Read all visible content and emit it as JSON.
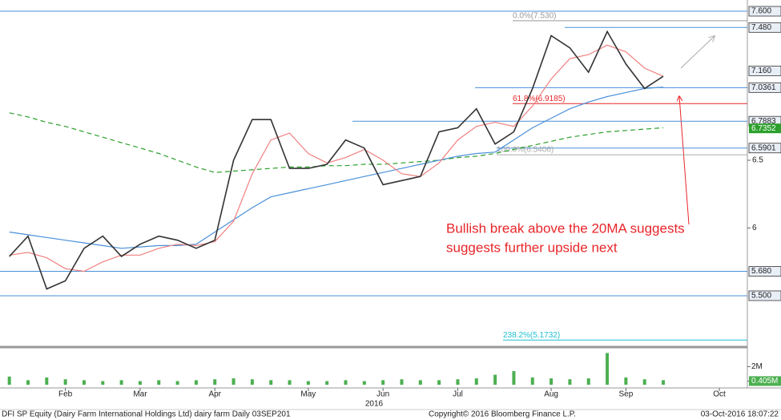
{
  "chart_data": {
    "type": "line",
    "categories": [
      null,
      null,
      null,
      "Feb",
      null,
      null,
      null,
      "Mar",
      null,
      null,
      null,
      "Apr",
      null,
      null,
      null,
      null,
      "May",
      null,
      null,
      null,
      "Jun",
      null,
      null,
      null,
      "Jul",
      null,
      null,
      null,
      null,
      "Aug",
      null,
      null,
      null,
      "Sep",
      null,
      null,
      null,
      null,
      "Oct",
      null
    ],
    "year_label": "2016",
    "ylim": [
      5.127,
      7.683
    ],
    "yticks": [
      6.5,
      6.0
    ],
    "series": [
      {
        "color": "#333333",
        "values": [
          5.79,
          5.94,
          5.55,
          5.61,
          5.85,
          5.94,
          5.79,
          5.88,
          5.94,
          5.91,
          5.85,
          5.91,
          6.5,
          6.8,
          6.8,
          6.44,
          6.44,
          6.47,
          6.65,
          6.59,
          6.32,
          6.35,
          6.38,
          6.71,
          6.74,
          6.88,
          6.62,
          6.71,
          7.03,
          7.42,
          7.33,
          7.15,
          7.45,
          7.21,
          7.03,
          7.12,
          null,
          null,
          null,
          null
        ]
      },
      {
        "color": "#f08080",
        "values": [
          5.8,
          5.82,
          5.78,
          5.7,
          5.68,
          5.75,
          5.8,
          5.8,
          5.85,
          5.88,
          5.87,
          5.9,
          6.05,
          6.4,
          6.65,
          6.7,
          6.55,
          6.48,
          6.52,
          6.58,
          6.5,
          6.4,
          6.38,
          6.48,
          6.65,
          6.75,
          6.78,
          6.75,
          6.9,
          7.1,
          7.25,
          7.28,
          7.35,
          7.3,
          7.18,
          7.12,
          null,
          null,
          null,
          null
        ]
      },
      {
        "color": "#4a90d9",
        "values": [
          5.97,
          5.95,
          5.93,
          5.91,
          5.89,
          5.87,
          5.85,
          5.86,
          5.87,
          5.87,
          5.88,
          5.97,
          6.06,
          6.15,
          6.23,
          6.26,
          6.29,
          6.32,
          6.35,
          6.38,
          6.41,
          6.44,
          6.47,
          6.5,
          6.53,
          6.55,
          6.56,
          6.65,
          6.74,
          6.81,
          6.88,
          6.93,
          6.97,
          7.0,
          7.03,
          7.04,
          null,
          null,
          null,
          null
        ]
      },
      {
        "color": "#2ca02c",
        "dashed": true,
        "end_label": {
          "value": 6.7352,
          "label": "6.7352"
        },
        "values": [
          6.85,
          6.82,
          6.78,
          6.75,
          6.71,
          6.67,
          6.63,
          6.59,
          6.55,
          6.5,
          6.45,
          6.41,
          6.42,
          6.43,
          6.44,
          6.45,
          6.45,
          6.46,
          6.46,
          6.47,
          6.47,
          6.48,
          6.49,
          6.5,
          6.52,
          6.53,
          6.55,
          6.58,
          6.61,
          6.64,
          6.67,
          6.69,
          6.71,
          6.72,
          6.73,
          6.74,
          null,
          null,
          null,
          null
        ]
      }
    ],
    "levels": [
      {
        "value": 7.6,
        "label": "7.600"
      },
      {
        "value": 7.48,
        "label": "7.480"
      },
      {
        "value": 7.16,
        "label": "7.160"
      },
      {
        "value": 7.0361,
        "label": "7.0361"
      },
      {
        "value": 6.7883,
        "label": "6.7883"
      },
      {
        "value": 6.5901,
        "label": "6.5901"
      },
      {
        "value": 5.68,
        "label": "5.680"
      },
      {
        "value": 5.5,
        "label": "5.500"
      }
    ],
    "level_color": "#4a90d9",
    "fibonacci": [
      {
        "value": 7.53,
        "label": "0.0%(7.530)",
        "color": "#999999"
      },
      {
        "value": 6.9185,
        "label": "61.8%(6.9185)",
        "color": "#e8262a"
      },
      {
        "value": 6.5406,
        "label": "100.0%(6.5406)",
        "color": "#aaaaaa"
      },
      {
        "value": 5.1732,
        "label": "238.2%(5.1732)",
        "color": "#20c0d0"
      }
    ],
    "volume": {
      "color": "#4caf50",
      "ylim": [
        0,
        3.8
      ],
      "yticks": [
        {
          "value": 2,
          "label": "2M"
        },
        {
          "value": 0.405,
          "label": "0.405M"
        }
      ],
      "values": [
        0.9,
        0.5,
        0.8,
        0.6,
        0.5,
        0.4,
        0.5,
        0.4,
        0.5,
        0.4,
        0.5,
        0.6,
        0.7,
        0.6,
        0.5,
        0.5,
        0.4,
        0.4,
        0.5,
        0.4,
        0.5,
        0.6,
        0.5,
        0.5,
        0.6,
        0.7,
        1.1,
        1.5,
        0.8,
        0.7,
        0.6,
        0.7,
        3.5,
        0.8,
        0.6,
        0.5,
        null,
        null,
        null,
        null
      ]
    },
    "annotation": [
      "Bullish break above the 20MA suggests",
      "suggests further upside next"
    ],
    "footer": {
      "security": "DFI SP Equity (Dairy Farm International Holdings Ltd) dairy farm  Daily 03SEP201",
      "copyright": "Copyright© 2016 Bloomberg Finance L.P.",
      "timestamp": "03-Oct-2016 18:07:22"
    }
  }
}
